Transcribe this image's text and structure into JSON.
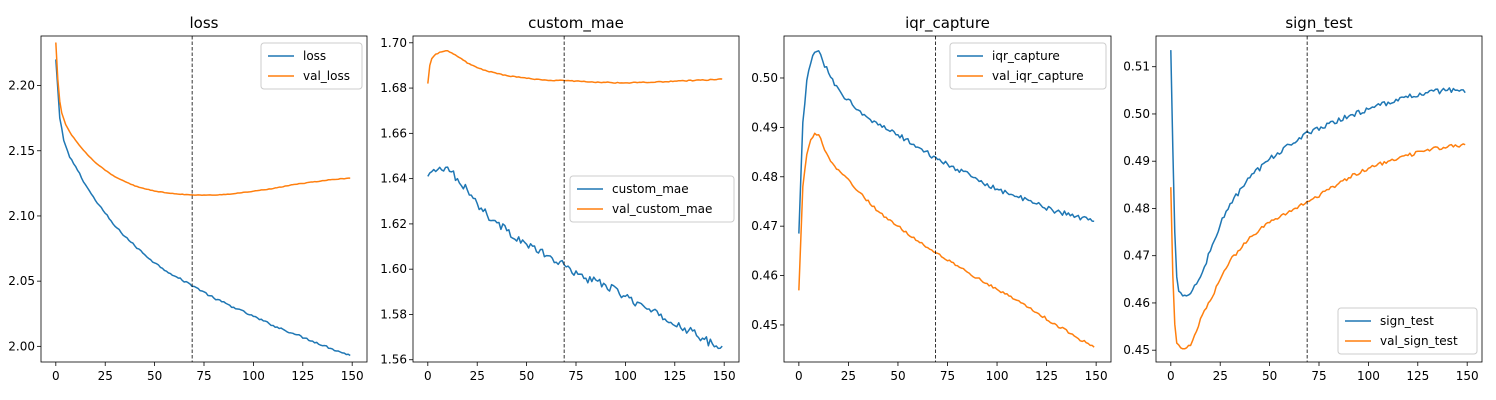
{
  "chart_data": [
    {
      "type": "line",
      "title": "loss",
      "xlabel": "",
      "ylabel": "",
      "xlim": [
        -7.5,
        157.5
      ],
      "ylim": [
        1.988,
        2.238
      ],
      "x_ticks": [
        0,
        25,
        50,
        75,
        100,
        125,
        150
      ],
      "y_ticks": [
        2.0,
        2.05,
        2.1,
        2.15,
        2.2
      ],
      "y_tick_labels": [
        "2.00",
        "2.05",
        "2.10",
        "2.15",
        "2.20"
      ],
      "vline_x": 69,
      "legend_position": "upper right",
      "grid": false,
      "series": [
        {
          "name": "loss",
          "color": "#1f77b4",
          "noise": 0.0008,
          "points": [
            [
              0,
              2.22
            ],
            [
              2,
              2.175
            ],
            [
              4,
              2.158
            ],
            [
              7,
              2.145
            ],
            [
              10,
              2.138
            ],
            [
              15,
              2.124
            ],
            [
              20,
              2.112
            ],
            [
              25,
              2.102
            ],
            [
              30,
              2.092
            ],
            [
              40,
              2.077
            ],
            [
              50,
              2.064
            ],
            [
              60,
              2.054
            ],
            [
              70,
              2.046
            ],
            [
              80,
              2.037
            ],
            [
              90,
              2.03
            ],
            [
              100,
              2.023
            ],
            [
              110,
              2.016
            ],
            [
              120,
              2.01
            ],
            [
              130,
              2.004
            ],
            [
              140,
              1.998
            ],
            [
              149,
              1.993
            ]
          ]
        },
        {
          "name": "val_loss",
          "color": "#ff7f0e",
          "noise": 0.0002,
          "points": [
            [
              0,
              2.233
            ],
            [
              1,
              2.205
            ],
            [
              2,
              2.188
            ],
            [
              3,
              2.179
            ],
            [
              5,
              2.17
            ],
            [
              8,
              2.162
            ],
            [
              12,
              2.154
            ],
            [
              16,
              2.147
            ],
            [
              20,
              2.141
            ],
            [
              25,
              2.135
            ],
            [
              30,
              2.13
            ],
            [
              40,
              2.123
            ],
            [
              50,
              2.119
            ],
            [
              60,
              2.117
            ],
            [
              70,
              2.116
            ],
            [
              80,
              2.116
            ],
            [
              90,
              2.117
            ],
            [
              100,
              2.119
            ],
            [
              110,
              2.121
            ],
            [
              120,
              2.124
            ],
            [
              130,
              2.126
            ],
            [
              140,
              2.128
            ],
            [
              149,
              2.129
            ]
          ]
        }
      ]
    },
    {
      "type": "line",
      "title": "custom_mae",
      "xlabel": "",
      "ylabel": "",
      "xlim": [
        -7.5,
        157.5
      ],
      "ylim": [
        1.559,
        1.703
      ],
      "x_ticks": [
        0,
        25,
        50,
        75,
        100,
        125,
        150
      ],
      "y_ticks": [
        1.56,
        1.58,
        1.6,
        1.62,
        1.64,
        1.66,
        1.68,
        1.7
      ],
      "y_tick_labels": [
        "1.56",
        "1.58",
        "1.60",
        "1.62",
        "1.64",
        "1.66",
        "1.68",
        "1.70"
      ],
      "vline_x": 69,
      "legend_position": "center right",
      "grid": false,
      "series": [
        {
          "name": "custom_mae",
          "color": "#1f77b4",
          "noise": 0.0018,
          "points": [
            [
              0,
              1.641
            ],
            [
              3,
              1.644
            ],
            [
              6,
              1.645
            ],
            [
              9,
              1.645
            ],
            [
              12,
              1.643
            ],
            [
              15,
              1.64
            ],
            [
              20,
              1.635
            ],
            [
              25,
              1.629
            ],
            [
              30,
              1.624
            ],
            [
              40,
              1.617
            ],
            [
              50,
              1.611
            ],
            [
              60,
              1.606
            ],
            [
              70,
              1.601
            ],
            [
              80,
              1.596
            ],
            [
              90,
              1.593
            ],
            [
              100,
              1.588
            ],
            [
              110,
              1.583
            ],
            [
              120,
              1.578
            ],
            [
              130,
              1.574
            ],
            [
              140,
              1.569
            ],
            [
              147,
              1.565
            ],
            [
              149,
              1.566
            ]
          ]
        },
        {
          "name": "val_custom_mae",
          "color": "#ff7f0e",
          "noise": 0.0002,
          "points": [
            [
              0,
              1.682
            ],
            [
              1,
              1.69
            ],
            [
              2,
              1.693
            ],
            [
              4,
              1.695
            ],
            [
              7,
              1.696
            ],
            [
              10,
              1.6965
            ],
            [
              13,
              1.695
            ],
            [
              17,
              1.693
            ],
            [
              20,
              1.691
            ],
            [
              25,
              1.689
            ],
            [
              30,
              1.6875
            ],
            [
              40,
              1.6855
            ],
            [
              50,
              1.6843
            ],
            [
              60,
              1.6835
            ],
            [
              70,
              1.6833
            ],
            [
              80,
              1.6828
            ],
            [
              90,
              1.6825
            ],
            [
              100,
              1.6823
            ],
            [
              110,
              1.6825
            ],
            [
              120,
              1.6828
            ],
            [
              130,
              1.6832
            ],
            [
              140,
              1.6835
            ],
            [
              149,
              1.684
            ]
          ]
        }
      ]
    },
    {
      "type": "line",
      "title": "iqr_capture",
      "xlabel": "",
      "ylabel": "",
      "xlim": [
        -7.5,
        157.5
      ],
      "ylim": [
        0.4425,
        0.5085
      ],
      "x_ticks": [
        0,
        25,
        50,
        75,
        100,
        125,
        150
      ],
      "y_ticks": [
        0.45,
        0.46,
        0.47,
        0.48,
        0.49,
        0.5
      ],
      "y_tick_labels": [
        "0.45",
        "0.46",
        "0.47",
        "0.48",
        "0.49",
        "0.50"
      ],
      "vline_x": 69,
      "legend_position": "upper right",
      "grid": false,
      "series": [
        {
          "name": "iqr_capture",
          "color": "#1f77b4",
          "noise": 0.0005,
          "points": [
            [
              0,
              0.4685
            ],
            [
              2,
              0.491
            ],
            [
              4,
              0.4995
            ],
            [
              6,
              0.503
            ],
            [
              8,
              0.5052
            ],
            [
              10,
              0.5055
            ],
            [
              12,
              0.5035
            ],
            [
              15,
              0.501
            ],
            [
              18,
              0.4985
            ],
            [
              22,
              0.4965
            ],
            [
              26,
              0.4955
            ],
            [
              30,
              0.4935
            ],
            [
              40,
              0.4905
            ],
            [
              50,
              0.4885
            ],
            [
              60,
              0.486
            ],
            [
              70,
              0.4835
            ],
            [
              80,
              0.4815
            ],
            [
              90,
              0.4795
            ],
            [
              100,
              0.4775
            ],
            [
              110,
              0.476
            ],
            [
              120,
              0.4745
            ],
            [
              130,
              0.473
            ],
            [
              140,
              0.472
            ],
            [
              149,
              0.471
            ]
          ]
        },
        {
          "name": "val_iqr_capture",
          "color": "#ff7f0e",
          "noise": 0.0003,
          "points": [
            [
              0,
              0.457
            ],
            [
              2,
              0.478
            ],
            [
              4,
              0.4845
            ],
            [
              6,
              0.4875
            ],
            [
              8,
              0.4888
            ],
            [
              10,
              0.4885
            ],
            [
              12,
              0.4865
            ],
            [
              15,
              0.484
            ],
            [
              18,
              0.4822
            ],
            [
              22,
              0.4805
            ],
            [
              26,
              0.479
            ],
            [
              30,
              0.477
            ],
            [
              40,
              0.473
            ],
            [
              50,
              0.47
            ],
            [
              60,
              0.467
            ],
            [
              70,
              0.4645
            ],
            [
              80,
              0.462
            ],
            [
              90,
              0.4595
            ],
            [
              100,
              0.4572
            ],
            [
              110,
              0.455
            ],
            [
              120,
              0.4525
            ],
            [
              130,
              0.45
            ],
            [
              140,
              0.4475
            ],
            [
              149,
              0.4455
            ]
          ]
        }
      ]
    },
    {
      "type": "line",
      "title": "sign_test",
      "xlabel": "",
      "ylabel": "",
      "xlim": [
        -7.5,
        157.5
      ],
      "ylim": [
        0.4475,
        0.5165
      ],
      "x_ticks": [
        0,
        25,
        50,
        75,
        100,
        125,
        150
      ],
      "y_ticks": [
        0.45,
        0.46,
        0.47,
        0.48,
        0.49,
        0.5,
        0.51
      ],
      "y_tick_labels": [
        "0.45",
        "0.46",
        "0.47",
        "0.48",
        "0.49",
        "0.50",
        "0.51"
      ],
      "vline_x": 69,
      "legend_position": "lower right",
      "grid": false,
      "series": [
        {
          "name": "sign_test",
          "color": "#1f77b4",
          "noise": 0.0006,
          "points": [
            [
              0,
              0.5135
            ],
            [
              1,
              0.493
            ],
            [
              2,
              0.475
            ],
            [
              3,
              0.4655
            ],
            [
              4,
              0.4625
            ],
            [
              6,
              0.4615
            ],
            [
              8,
              0.4615
            ],
            [
              10,
              0.462
            ],
            [
              13,
              0.464
            ],
            [
              16,
              0.4665
            ],
            [
              20,
              0.471
            ],
            [
              25,
              0.4765
            ],
            [
              30,
              0.481
            ],
            [
              40,
              0.4865
            ],
            [
              50,
              0.4905
            ],
            [
              60,
              0.4935
            ],
            [
              70,
              0.496
            ],
            [
              80,
              0.498
            ],
            [
              90,
              0.4995
            ],
            [
              100,
              0.501
            ],
            [
              110,
              0.5025
            ],
            [
              120,
              0.5035
            ],
            [
              130,
              0.5045
            ],
            [
              140,
              0.505
            ],
            [
              149,
              0.5045
            ]
          ]
        },
        {
          "name": "val_sign_test",
          "color": "#ff7f0e",
          "noise": 0.0004,
          "points": [
            [
              0,
              0.4845
            ],
            [
              1,
              0.466
            ],
            [
              2,
              0.4555
            ],
            [
              3,
              0.4515
            ],
            [
              5,
              0.4505
            ],
            [
              8,
              0.4505
            ],
            [
              10,
              0.451
            ],
            [
              13,
              0.454
            ],
            [
              16,
              0.4575
            ],
            [
              20,
              0.4605
            ],
            [
              25,
              0.465
            ],
            [
              30,
              0.469
            ],
            [
              40,
              0.474
            ],
            [
              50,
              0.477
            ],
            [
              60,
              0.4795
            ],
            [
              70,
              0.4815
            ],
            [
              80,
              0.484
            ],
            [
              90,
              0.4865
            ],
            [
              100,
              0.4885
            ],
            [
              110,
              0.49
            ],
            [
              120,
              0.4912
            ],
            [
              130,
              0.4925
            ],
            [
              140,
              0.493
            ],
            [
              149,
              0.4935
            ]
          ]
        }
      ]
    }
  ]
}
